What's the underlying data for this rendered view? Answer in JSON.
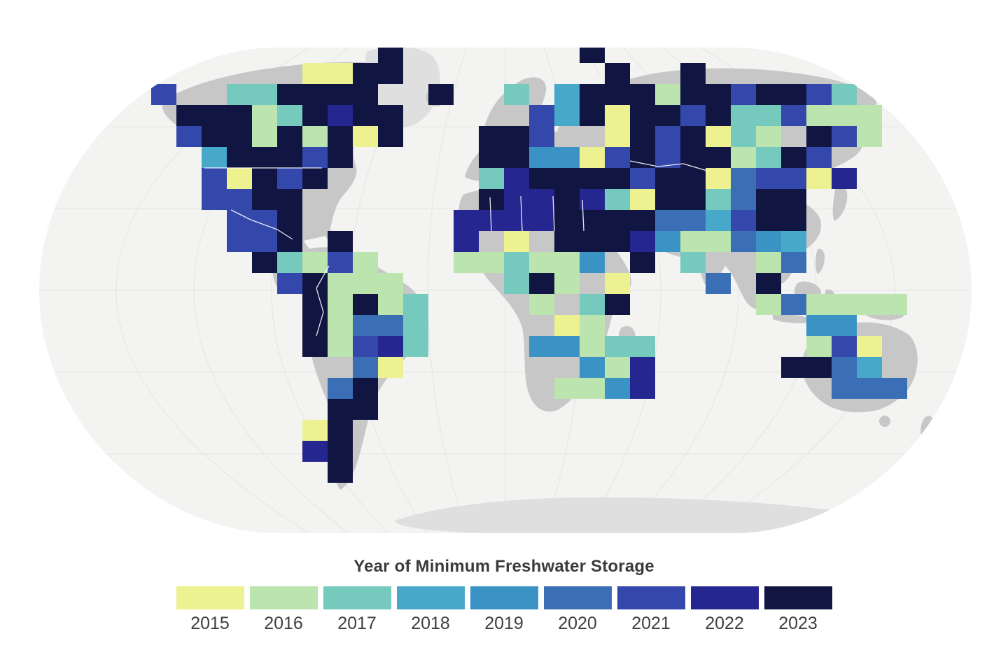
{
  "legend": {
    "title": "Year of Minimum Freshwater Storage",
    "items": [
      {
        "year": "2015",
        "color": "#eef18f"
      },
      {
        "year": "2016",
        "color": "#bce4af"
      },
      {
        "year": "2017",
        "color": "#76c9bd"
      },
      {
        "year": "2018",
        "color": "#48a8ca"
      },
      {
        "year": "2019",
        "color": "#3b93c5"
      },
      {
        "year": "2020",
        "color": "#3a6eb5"
      },
      {
        "year": "2021",
        "color": "#3447ab"
      },
      {
        "year": "2022",
        "color": "#25268f"
      },
      {
        "year": "2023",
        "color": "#111541"
      }
    ]
  },
  "map": {
    "type": "gridded-choropleth-world-map",
    "colors": {
      "ocean": "#f3f3f2",
      "land": "#c7c7c7",
      "ice": "#dfdfdf",
      "graticule": "#e4e4e4",
      "border": "#ffffff"
    },
    "cells": [
      [
        15,
        0,
        8
      ],
      [
        23,
        0,
        8
      ],
      [
        24,
        1,
        8
      ],
      [
        27,
        1,
        8
      ],
      [
        12,
        1,
        0
      ],
      [
        13,
        1,
        0
      ],
      [
        14,
        1,
        8
      ],
      [
        15,
        1,
        8
      ],
      [
        6,
        2,
        6
      ],
      [
        9,
        2,
        2
      ],
      [
        10,
        2,
        2
      ],
      [
        11,
        2,
        8
      ],
      [
        12,
        2,
        8
      ],
      [
        13,
        2,
        8
      ],
      [
        14,
        2,
        8
      ],
      [
        7,
        3,
        8
      ],
      [
        8,
        3,
        8
      ],
      [
        9,
        3,
        8
      ],
      [
        10,
        3,
        1
      ],
      [
        11,
        3,
        2
      ],
      [
        12,
        3,
        8
      ],
      [
        13,
        3,
        7
      ],
      [
        14,
        3,
        8
      ],
      [
        15,
        3,
        8
      ],
      [
        7,
        4,
        6
      ],
      [
        8,
        4,
        8
      ],
      [
        9,
        4,
        8
      ],
      [
        10,
        4,
        1
      ],
      [
        11,
        4,
        8
      ],
      [
        12,
        4,
        1
      ],
      [
        13,
        4,
        8
      ],
      [
        14,
        4,
        0
      ],
      [
        15,
        4,
        8
      ],
      [
        8,
        5,
        3
      ],
      [
        9,
        5,
        8
      ],
      [
        10,
        5,
        8
      ],
      [
        11,
        5,
        8
      ],
      [
        12,
        5,
        6
      ],
      [
        13,
        5,
        8
      ],
      [
        8,
        6,
        6
      ],
      [
        9,
        6,
        0
      ],
      [
        10,
        6,
        8
      ],
      [
        11,
        6,
        6
      ],
      [
        12,
        6,
        8
      ],
      [
        8,
        7,
        6
      ],
      [
        9,
        7,
        6
      ],
      [
        10,
        7,
        8
      ],
      [
        11,
        7,
        8
      ],
      [
        9,
        8,
        6
      ],
      [
        10,
        8,
        6
      ],
      [
        11,
        8,
        8
      ],
      [
        9,
        9,
        6
      ],
      [
        10,
        9,
        6
      ],
      [
        11,
        9,
        8
      ],
      [
        13,
        9,
        8
      ],
      [
        10,
        10,
        8
      ],
      [
        11,
        10,
        2
      ],
      [
        12,
        10,
        1
      ],
      [
        11,
        11,
        6
      ],
      [
        12,
        11,
        1
      ],
      [
        13,
        10,
        6
      ],
      [
        14,
        10,
        1
      ],
      [
        12,
        11,
        8
      ],
      [
        13,
        11,
        1
      ],
      [
        14,
        11,
        1
      ],
      [
        15,
        11,
        1
      ],
      [
        12,
        12,
        8
      ],
      [
        13,
        12,
        1
      ],
      [
        14,
        12,
        8
      ],
      [
        15,
        12,
        1
      ],
      [
        16,
        12,
        2
      ],
      [
        12,
        13,
        8
      ],
      [
        13,
        13,
        1
      ],
      [
        14,
        13,
        5
      ],
      [
        15,
        13,
        5
      ],
      [
        16,
        13,
        2
      ],
      [
        12,
        14,
        8
      ],
      [
        13,
        14,
        1
      ],
      [
        14,
        14,
        6
      ],
      [
        15,
        14,
        7
      ],
      [
        16,
        14,
        2
      ],
      [
        14,
        15,
        5
      ],
      [
        15,
        15,
        0
      ],
      [
        13,
        16,
        5
      ],
      [
        14,
        16,
        8
      ],
      [
        13,
        17,
        8
      ],
      [
        14,
        17,
        8
      ],
      [
        12,
        18,
        0
      ],
      [
        13,
        18,
        8
      ],
      [
        13,
        19,
        8
      ],
      [
        12,
        19,
        7
      ],
      [
        13,
        20,
        8
      ],
      [
        17,
        2,
        8
      ],
      [
        20,
        2,
        2
      ],
      [
        22,
        2,
        3
      ],
      [
        23,
        2,
        8
      ],
      [
        21,
        3,
        6
      ],
      [
        22,
        3,
        3
      ],
      [
        23,
        3,
        8
      ],
      [
        19,
        4,
        8
      ],
      [
        20,
        4,
        8
      ],
      [
        21,
        4,
        6
      ],
      [
        19,
        5,
        8
      ],
      [
        20,
        5,
        8
      ],
      [
        21,
        5,
        4
      ],
      [
        22,
        5,
        4
      ],
      [
        23,
        5,
        0
      ],
      [
        24,
        5,
        6
      ],
      [
        19,
        6,
        2
      ],
      [
        20,
        6,
        7
      ],
      [
        21,
        6,
        8
      ],
      [
        22,
        6,
        8
      ],
      [
        24,
        2,
        8
      ],
      [
        25,
        2,
        8
      ],
      [
        26,
        2,
        1
      ],
      [
        27,
        2,
        8
      ],
      [
        28,
        2,
        8
      ],
      [
        29,
        2,
        6
      ],
      [
        30,
        2,
        8
      ],
      [
        31,
        2,
        8
      ],
      [
        32,
        2,
        6
      ],
      [
        33,
        2,
        2
      ],
      [
        24,
        3,
        0
      ],
      [
        25,
        3,
        8
      ],
      [
        26,
        3,
        8
      ],
      [
        27,
        3,
        6
      ],
      [
        28,
        3,
        8
      ],
      [
        29,
        3,
        2
      ],
      [
        30,
        3,
        2
      ],
      [
        31,
        3,
        6
      ],
      [
        32,
        3,
        1
      ],
      [
        33,
        3,
        1
      ],
      [
        34,
        3,
        1
      ],
      [
        24,
        4,
        0
      ],
      [
        25,
        4,
        8
      ],
      [
        26,
        4,
        6
      ],
      [
        27,
        4,
        8
      ],
      [
        28,
        4,
        0
      ],
      [
        29,
        4,
        2
      ],
      [
        30,
        4,
        1
      ],
      [
        32,
        4,
        8
      ],
      [
        33,
        4,
        6
      ],
      [
        34,
        4,
        1
      ],
      [
        25,
        5,
        8
      ],
      [
        26,
        5,
        6
      ],
      [
        27,
        5,
        8
      ],
      [
        28,
        5,
        8
      ],
      [
        29,
        5,
        1
      ],
      [
        30,
        5,
        2
      ],
      [
        31,
        5,
        8
      ],
      [
        32,
        5,
        6
      ],
      [
        24,
        6,
        8
      ],
      [
        25,
        6,
        6
      ],
      [
        26,
        6,
        8
      ],
      [
        27,
        6,
        8
      ],
      [
        28,
        6,
        0
      ],
      [
        29,
        6,
        5
      ],
      [
        30,
        6,
        6
      ],
      [
        31,
        6,
        6
      ],
      [
        32,
        6,
        0
      ],
      [
        33,
        6,
        7
      ],
      [
        26,
        7,
        8
      ],
      [
        27,
        7,
        8
      ],
      [
        28,
        7,
        2
      ],
      [
        29,
        7,
        5
      ],
      [
        30,
        7,
        8
      ],
      [
        31,
        7,
        8
      ],
      [
        29,
        8,
        6
      ],
      [
        30,
        8,
        8
      ],
      [
        31,
        8,
        8
      ],
      [
        23,
        6,
        8
      ],
      [
        23,
        7,
        7
      ],
      [
        24,
        7,
        2
      ],
      [
        25,
        7,
        0
      ],
      [
        24,
        8,
        8
      ],
      [
        25,
        8,
        8
      ],
      [
        24,
        9,
        8
      ],
      [
        25,
        9,
        7
      ],
      [
        19,
        7,
        8
      ],
      [
        20,
        7,
        7
      ],
      [
        21,
        7,
        7
      ],
      [
        22,
        7,
        8
      ],
      [
        18,
        8,
        7
      ],
      [
        19,
        8,
        7
      ],
      [
        20,
        8,
        7
      ],
      [
        21,
        8,
        7
      ],
      [
        22,
        8,
        8
      ],
      [
        23,
        8,
        8
      ],
      [
        18,
        9,
        7
      ],
      [
        20,
        9,
        0
      ],
      [
        22,
        9,
        8
      ],
      [
        23,
        9,
        8
      ],
      [
        18,
        10,
        1
      ],
      [
        19,
        10,
        1
      ],
      [
        20,
        10,
        2
      ],
      [
        21,
        10,
        1
      ],
      [
        22,
        10,
        1
      ],
      [
        23,
        10,
        4
      ],
      [
        25,
        10,
        8
      ],
      [
        20,
        11,
        2
      ],
      [
        21,
        11,
        8
      ],
      [
        22,
        11,
        1
      ],
      [
        24,
        11,
        0
      ],
      [
        21,
        12,
        1
      ],
      [
        23,
        12,
        2
      ],
      [
        24,
        12,
        8
      ],
      [
        22,
        13,
        0
      ],
      [
        23,
        13,
        1
      ],
      [
        21,
        14,
        4
      ],
      [
        22,
        14,
        4
      ],
      [
        23,
        14,
        1
      ],
      [
        24,
        14,
        2
      ],
      [
        23,
        15,
        4
      ],
      [
        24,
        15,
        1
      ],
      [
        22,
        16,
        1
      ],
      [
        23,
        16,
        1
      ],
      [
        24,
        16,
        4
      ],
      [
        25,
        14,
        2
      ],
      [
        25,
        15,
        7
      ],
      [
        25,
        16,
        7
      ],
      [
        26,
        8,
        5
      ],
      [
        27,
        8,
        5
      ],
      [
        28,
        8,
        3
      ],
      [
        26,
        9,
        4
      ],
      [
        27,
        9,
        1
      ],
      [
        28,
        9,
        1
      ],
      [
        27,
        10,
        2
      ],
      [
        28,
        11,
        5
      ],
      [
        29,
        9,
        5
      ],
      [
        30,
        9,
        4
      ],
      [
        31,
        9,
        3
      ],
      [
        30,
        10,
        1
      ],
      [
        31,
        10,
        5
      ],
      [
        30,
        11,
        8
      ],
      [
        30,
        12,
        1
      ],
      [
        31,
        12,
        5
      ],
      [
        32,
        12,
        1
      ],
      [
        33,
        12,
        1
      ],
      [
        34,
        12,
        1
      ],
      [
        35,
        12,
        1
      ],
      [
        32,
        13,
        4
      ],
      [
        32,
        14,
        1
      ],
      [
        33,
        13,
        4
      ],
      [
        33,
        14,
        6
      ],
      [
        34,
        14,
        0
      ],
      [
        31,
        15,
        8
      ],
      [
        32,
        15,
        8
      ],
      [
        33,
        15,
        5
      ],
      [
        34,
        15,
        3
      ],
      [
        33,
        16,
        5
      ],
      [
        34,
        16,
        5
      ],
      [
        35,
        16,
        5
      ]
    ]
  }
}
